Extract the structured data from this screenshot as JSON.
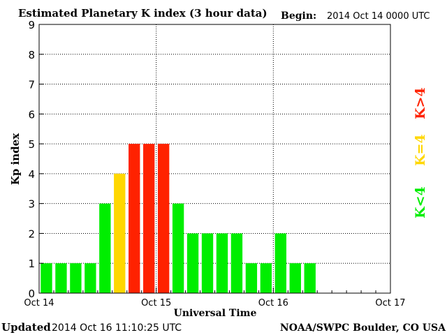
{
  "header": {
    "title": "Estimated Planetary K index (3 hour data)",
    "begin_label": "Begin:",
    "begin_value": "2014 Oct 14 0000 UTC"
  },
  "footer": {
    "updated_label": "Updated",
    "updated_value": "2014 Oct 16 11:10:25 UTC",
    "credit": "NOAA/SWPC Boulder, CO USA"
  },
  "legend": {
    "low": {
      "label": "K<4",
      "color": "#00ee00"
    },
    "mid": {
      "label": "K=4",
      "color": "#ffd700"
    },
    "high": {
      "label": "K>4",
      "color": "#ff2200"
    }
  },
  "chart_data": {
    "type": "bar",
    "title": "Estimated Planetary K index (3 hour data)",
    "xlabel": "Universal Time",
    "ylabel": "Kp index",
    "ylim": [
      0,
      9
    ],
    "yticks": [
      0,
      1,
      2,
      3,
      4,
      5,
      6,
      7,
      8,
      9
    ],
    "xlim_days": [
      0,
      3
    ],
    "xticks": [
      "Oct 14",
      "Oct 15",
      "Oct 16",
      "Oct 17"
    ],
    "grid": true,
    "interval_hours": 3,
    "values": [
      1,
      1,
      1,
      1,
      3,
      4,
      5,
      5,
      5,
      3,
      2,
      2,
      2,
      2,
      1,
      1,
      2,
      1,
      1
    ],
    "colors": {
      "low": "#00ee00",
      "mid": "#ffd700",
      "high": "#ff2200"
    }
  }
}
